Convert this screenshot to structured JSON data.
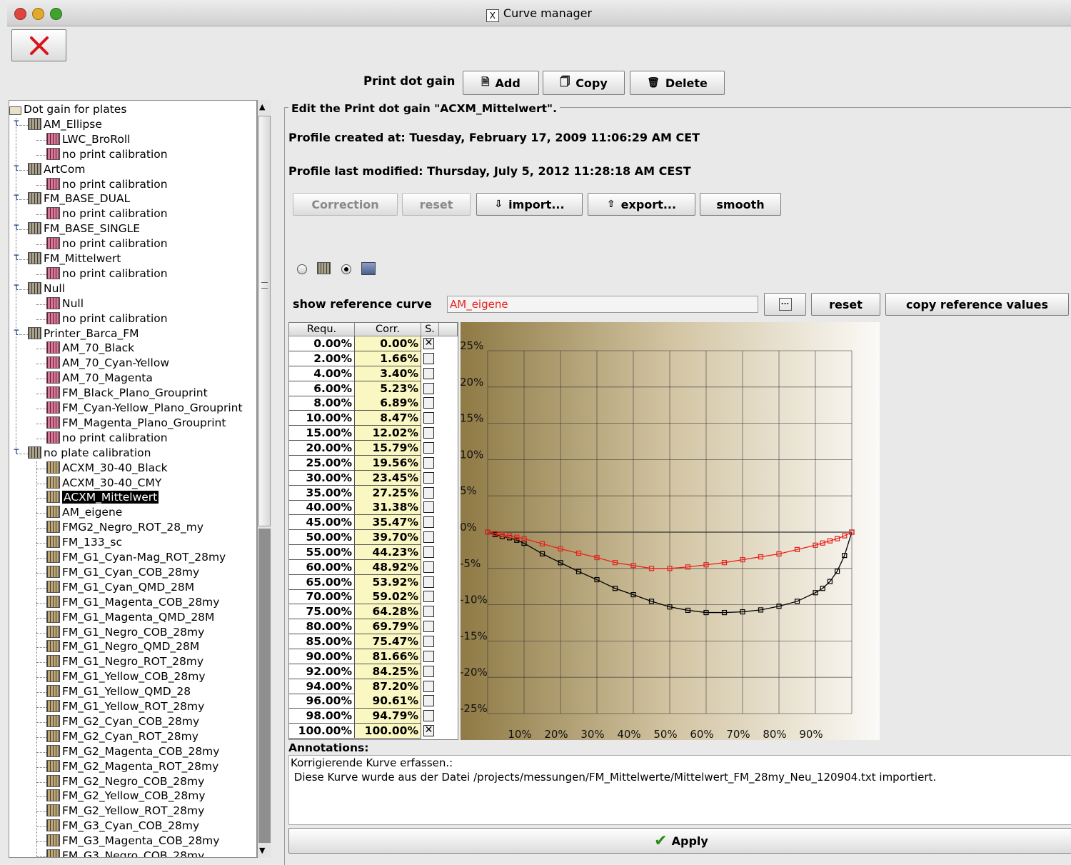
{
  "window": {
    "title": "Curve manager",
    "title_icon": "X"
  },
  "close_button": {
    "icon": "close-x-icon"
  },
  "toolbar": {
    "label": "Print dot gain",
    "add": "Add",
    "copy": "Copy",
    "delete": "Delete"
  },
  "tree": {
    "root": "Dot gain for plates",
    "nodes": [
      "AM_Ellipse",
      "LWC_BroRoll",
      "no print calibration",
      "ArtCom",
      "no print calibration",
      "FM_BASE_DUAL",
      "no print calibration",
      "FM_BASE_SINGLE",
      "no print calibration",
      "FM_Mittelwert",
      "no print calibration",
      "Null",
      "Null",
      "no print calibration",
      "Printer_Barca_FM",
      "AM_70_Black",
      "AM_70_Cyan-Yellow",
      "AM_70_Magenta",
      "FM_Black_Plano_Grouprint",
      "FM_Cyan-Yellow_Plano_Grouprint",
      "FM_Magenta_Plano_Grouprint",
      "no print calibration",
      "no plate calibration",
      "ACXM_30-40_Black",
      "ACXM_30-40_CMY",
      "ACXM_Mittelwert",
      "AM_eigene",
      "FMG2_Negro_ROT_28_my",
      "FM_133_sc",
      "FM_G1_Cyan-Mag_ROT_28my",
      "FM_G1_Cyan_COB_28my",
      "FM_G1_Cyan_QMD_28M",
      "FM_G1_Magenta_COB_28my",
      "FM_G1_Magenta_QMD_28M",
      "FM_G1_Negro_COB_28my",
      "FM_G1_Negro_QMD_28M",
      "FM_G1_Negro_ROT_28my",
      "FM_G1_Yellow_COB_28my",
      "FM_G1_Yellow_QMD_28",
      "FM_G1_Yellow_ROT_28my",
      "FM_G2_Cyan_COB_28my",
      "FM_G2_Cyan_ROT_28my",
      "FM_G2_Magenta_COB_28my",
      "FM_G2_Magenta_ROT_28my",
      "FM_G2_Negro_COB_28my",
      "FM_G2_Yellow_COB_28my",
      "FM_G2_Yellow_ROT_28my",
      "FM_G3_Cyan_COB_28my",
      "FM_G3_Magenta_COB_28my",
      "FM_G3_Negro_COB_28my"
    ],
    "selected": "ACXM_Mittelwert"
  },
  "editor": {
    "group_title": "Edit the Print dot gain \"ACXM_Mittelwert\".",
    "created": "Profile created at: Tuesday, February 17, 2009 11:06:29 AM CET",
    "modified": "Profile last modified: Thursday, July 5, 2012 11:28:18 AM CEST",
    "buttons": {
      "correction": "Correction",
      "reset": "reset",
      "import": "import...",
      "export": "export...",
      "smooth": "smooth"
    },
    "reference": {
      "label": "show reference curve",
      "value": "AM_eigene",
      "browse": "...",
      "reset": "reset",
      "copy": "copy reference values"
    },
    "annotations_label": "Annotations:",
    "annotations_text_1": "Korrigierende Kurve erfassen.:",
    "annotations_text_2": " Diese Kurve wurde aus der Datei /projects/messungen/FM_Mittelwerte/Mittelwert_FM_28my_Neu_120904.txt importiert.",
    "apply": "Apply"
  },
  "table": {
    "headers": [
      "Requ.",
      "Corr.",
      "S."
    ],
    "rows": [
      [
        "0.00%",
        "0.00%",
        true
      ],
      [
        "2.00%",
        "1.66%",
        false
      ],
      [
        "4.00%",
        "3.40%",
        false
      ],
      [
        "6.00%",
        "5.23%",
        false
      ],
      [
        "8.00%",
        "6.89%",
        false
      ],
      [
        "10.00%",
        "8.47%",
        false
      ],
      [
        "15.00%",
        "12.02%",
        false
      ],
      [
        "20.00%",
        "15.79%",
        false
      ],
      [
        "25.00%",
        "19.56%",
        false
      ],
      [
        "30.00%",
        "23.45%",
        false
      ],
      [
        "35.00%",
        "27.25%",
        false
      ],
      [
        "40.00%",
        "31.38%",
        false
      ],
      [
        "45.00%",
        "35.47%",
        false
      ],
      [
        "50.00%",
        "39.70%",
        false
      ],
      [
        "55.00%",
        "44.23%",
        false
      ],
      [
        "60.00%",
        "48.92%",
        false
      ],
      [
        "65.00%",
        "53.92%",
        false
      ],
      [
        "70.00%",
        "59.02%",
        false
      ],
      [
        "75.00%",
        "64.28%",
        false
      ],
      [
        "80.00%",
        "69.79%",
        false
      ],
      [
        "85.00%",
        "75.47%",
        false
      ],
      [
        "90.00%",
        "81.66%",
        false
      ],
      [
        "92.00%",
        "84.25%",
        false
      ],
      [
        "94.00%",
        "87.20%",
        false
      ],
      [
        "96.00%",
        "90.61%",
        false
      ],
      [
        "98.00%",
        "94.79%",
        false
      ],
      [
        "100.00%",
        "100.00%",
        true
      ]
    ]
  },
  "chart_data": {
    "type": "line",
    "x_tick_labels": [
      "10%",
      "20%",
      "30%",
      "40%",
      "50%",
      "60%",
      "70%",
      "80%",
      "90%"
    ],
    "y_tick_labels": [
      "25%",
      "20%",
      "15%",
      "10%",
      "5%",
      "0%",
      "-5%",
      "-10%",
      "-15%",
      "-20%",
      "-25%"
    ],
    "xlim": [
      0,
      100
    ],
    "ylim": [
      -25,
      25
    ],
    "series": [
      {
        "color": "#000000",
        "x": [
          0,
          2,
          4,
          6,
          8,
          10,
          15,
          20,
          25,
          30,
          35,
          40,
          45,
          50,
          55,
          60,
          65,
          70,
          75,
          80,
          85,
          90,
          92,
          94,
          96,
          98,
          100
        ],
        "y": [
          0,
          -0.34,
          -0.6,
          -0.77,
          -1.11,
          -1.53,
          -2.98,
          -4.21,
          -5.44,
          -6.55,
          -7.75,
          -8.62,
          -9.53,
          -10.3,
          -10.77,
          -11.08,
          -11.08,
          -10.98,
          -10.72,
          -10.21,
          -9.53,
          -8.34,
          -7.75,
          -6.8,
          -5.39,
          -3.21,
          0
        ]
      },
      {
        "color": "#e8211c",
        "x": [
          0,
          2,
          4,
          6,
          8,
          10,
          15,
          20,
          25,
          30,
          35,
          40,
          45,
          50,
          55,
          60,
          65,
          70,
          75,
          80,
          85,
          90,
          92,
          94,
          96,
          98,
          100
        ],
        "y": [
          0,
          -0.2,
          -0.35,
          -0.5,
          -0.7,
          -0.9,
          -1.6,
          -2.3,
          -2.9,
          -3.5,
          -4.2,
          -4.6,
          -5.0,
          -5.0,
          -4.8,
          -4.5,
          -4.2,
          -3.8,
          -3.4,
          -3.0,
          -2.4,
          -1.8,
          -1.5,
          -1.2,
          -0.9,
          -0.5,
          0
        ]
      }
    ]
  },
  "colors": {
    "reference": "#e8211c",
    "selection": "#000000",
    "apply_check": "#2a8a14"
  }
}
